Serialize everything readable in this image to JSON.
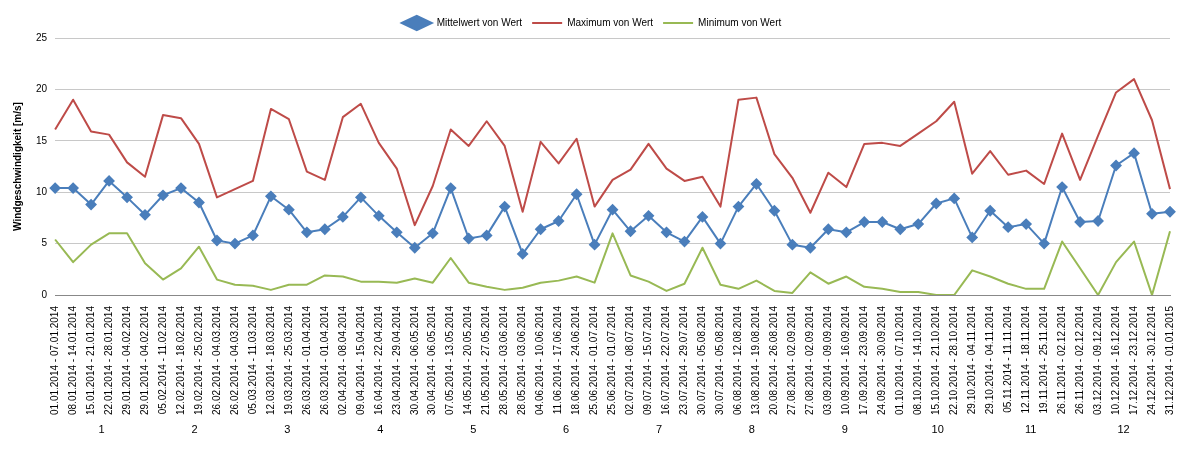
{
  "chart_data": {
    "type": "line",
    "ylabel": "Windgeschwindigkeit [m/s]",
    "legend": "top",
    "grid": "y",
    "ylim": [
      0,
      25
    ],
    "yticks": [
      0,
      5,
      10,
      15,
      20,
      25
    ],
    "categories": [
      "01.01.2014 - 07.01.2014",
      "08.01.2014 - 14.01.2014",
      "15.01.2014 - 21.01.2014",
      "22.01.2014 - 28.01.2014",
      "29.01.2014 - 04.02.2014",
      "29.01.2014 - 04.02.2014",
      "05.02.2014 - 11.02.2014",
      "12.02.2014 - 18.02.2014",
      "19.02.2014 - 25.02.2014",
      "26.02.2014 - 04.03.2014",
      "26.02.2014 - 04.03.2014",
      "05.03.2014 - 11.03.2014",
      "12.03.2014 - 18.03.2014",
      "19.03.2014 - 25.03.2014",
      "26.03.2014 - 01.04.2014",
      "26.03.2014 - 01.04.2014",
      "02.04.2014 - 08.04.2014",
      "09.04.2014 - 15.04.2014",
      "16.04.2014 - 22.04.2014",
      "23.04.2014 - 29.04.2014",
      "30.04.2014 - 06.05.2014",
      "30.04.2014 - 06.05.2014",
      "07.05.2014 - 13.05.2014",
      "14.05.2014 - 20.05.2014",
      "21.05.2014 - 27.05.2014",
      "28.05.2014 - 03.06.2014",
      "28.05.2014 - 03.06.2014",
      "04.06.2014 - 10.06.2014",
      "11.06.2014 - 17.06.2014",
      "18.06.2014 - 24.06.2014",
      "25.06.2014 - 01.07.2014",
      "25.06.2014 - 01.07.2014",
      "02.07.2014 - 08.07.2014",
      "09.07.2014 - 15.07.2014",
      "16.07.2014 - 22.07.2014",
      "23.07.2014 - 29.07.2014",
      "30.07.2014 - 05.08.2014",
      "30.07.2014 - 05.08.2014",
      "06.08.2014 - 12.08.2014",
      "13.08.2014 - 19.08.2014",
      "20.08.2014 - 26.08.2014",
      "27.08.2014 - 02.09.2014",
      "27.08.2014 - 02.09.2014",
      "03.09.2014 - 09.09.2014",
      "10.09.2014 - 16.09.2014",
      "17.09.2014 - 23.09.2014",
      "24.09.2014 - 30.09.2014",
      "01.10.2014 - 07.10.2014",
      "08.10.2014 - 14.10.2014",
      "15.10.2014 - 21.10.2014",
      "22.10.2014 - 28.10.2014",
      "29.10.2014 - 04.11.2014",
      "29.10.2014 - 04.11.2014",
      "05.11.2014 - 11.11.2014",
      "12.11.2014 - 18.11.2014",
      "19.11.2014 - 25.11.2014",
      "26.11.2014 - 02.12.2014",
      "26.11.2014 - 02.12.2014",
      "03.12.2014 - 09.12.2014",
      "10.12.2014 - 16.12.2014",
      "17.12.2014 - 23.12.2014",
      "24.12.2014 - 30.12.2014",
      "31.12.2014 - 01.01.2015"
    ],
    "series": [
      {
        "name": "Mittelwert von Wert",
        "color": "#4a7ebb",
        "marker": "diamond",
        "values": [
          10.4,
          10.4,
          8.8,
          11.1,
          9.5,
          7.8,
          9.7,
          10.4,
          9.0,
          5.3,
          5.0,
          5.8,
          9.6,
          8.3,
          6.1,
          6.4,
          7.6,
          9.5,
          7.7,
          6.1,
          4.6,
          6.0,
          10.4,
          5.5,
          5.8,
          8.6,
          4.0,
          6.4,
          7.2,
          9.8,
          4.9,
          8.3,
          6.2,
          7.7,
          6.1,
          5.2,
          7.6,
          5.0,
          8.6,
          10.8,
          8.2,
          4.9,
          4.6,
          6.4,
          6.1,
          7.1,
          7.1,
          6.4,
          6.9,
          8.9,
          9.4,
          5.6,
          8.2,
          6.6,
          6.9,
          5.0,
          10.5,
          7.1,
          7.2,
          12.6,
          13.8,
          7.9,
          8.1
        ]
      },
      {
        "name": "Maximum von Wert",
        "color": "#be4b48",
        "marker": "none",
        "values": [
          16.1,
          19.0,
          15.9,
          15.6,
          12.9,
          11.5,
          17.5,
          17.2,
          14.7,
          9.5,
          10.3,
          11.1,
          18.1,
          17.1,
          12.0,
          11.2,
          17.3,
          18.6,
          14.8,
          12.3,
          6.8,
          10.6,
          16.1,
          14.5,
          16.9,
          14.5,
          8.1,
          14.9,
          12.8,
          15.2,
          8.6,
          11.2,
          12.2,
          14.7,
          12.3,
          11.1,
          11.5,
          8.6,
          19.0,
          19.2,
          13.7,
          11.4,
          8.0,
          11.9,
          10.5,
          14.7,
          14.8,
          14.5,
          15.7,
          16.9,
          18.8,
          11.8,
          14.0,
          11.7,
          12.1,
          10.8,
          15.7,
          11.2,
          15.5,
          19.7,
          21.0,
          17.0,
          10.3
        ]
      },
      {
        "name": "Minimum von Wert",
        "color": "#98b954",
        "marker": "none",
        "values": [
          5.4,
          3.2,
          4.9,
          6.0,
          6.0,
          3.1,
          1.5,
          2.6,
          4.7,
          1.5,
          1.0,
          0.9,
          0.5,
          1.0,
          1.0,
          1.9,
          1.8,
          1.3,
          1.3,
          1.2,
          1.6,
          1.2,
          3.6,
          1.2,
          0.8,
          0.5,
          0.7,
          1.2,
          1.4,
          1.8,
          1.2,
          6.0,
          1.9,
          1.3,
          0.4,
          1.1,
          4.6,
          1.0,
          0.6,
          1.4,
          0.4,
          0.2,
          2.2,
          1.1,
          1.8,
          0.8,
          0.6,
          0.3,
          0.3,
          0,
          0,
          2.4,
          1.8,
          1.1,
          0.6,
          0.6,
          5.2,
          2.6,
          0,
          3.2,
          5.2,
          0,
          6.2
        ]
      }
    ],
    "annotations": [
      "1",
      "2",
      "3",
      "4",
      "5",
      "6",
      "7",
      "8",
      "9",
      "10",
      "11",
      "12"
    ]
  }
}
